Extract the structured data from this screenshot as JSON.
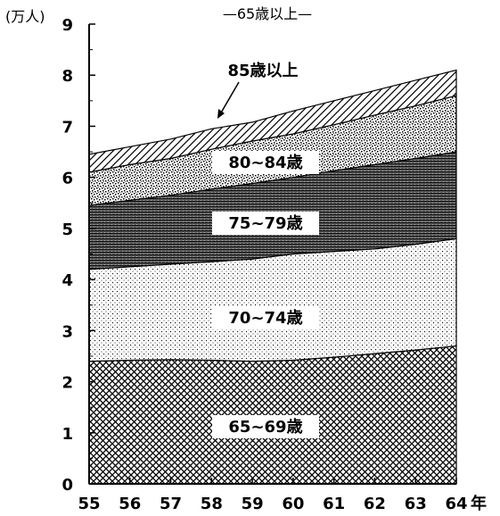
{
  "chart_data": {
    "type": "area",
    "stacked": true,
    "title": "—65歳以上—",
    "ylabel": "(万人)",
    "xunit": "年",
    "x": [
      "55",
      "56",
      "57",
      "58",
      "59",
      "60",
      "61",
      "62",
      "63",
      "64"
    ],
    "ylim": [
      0,
      9
    ],
    "yticks": [
      0,
      1,
      2,
      3,
      4,
      5,
      6,
      7,
      8,
      9
    ],
    "series": [
      {
        "name": "65~69歳",
        "pattern": "crosshatch",
        "values": [
          2.4,
          2.42,
          2.43,
          2.42,
          2.4,
          2.42,
          2.48,
          2.55,
          2.62,
          2.7
        ]
      },
      {
        "name": "70~74歳",
        "pattern": "fine-dots",
        "values": [
          1.8,
          1.83,
          1.87,
          1.93,
          2.0,
          2.08,
          2.07,
          2.05,
          2.07,
          2.1
        ]
      },
      {
        "name": "75~79歳",
        "pattern": "dense-lines",
        "values": [
          1.25,
          1.3,
          1.35,
          1.42,
          1.48,
          1.5,
          1.58,
          1.65,
          1.68,
          1.7
        ]
      },
      {
        "name": "80~84歳",
        "pattern": "stipple",
        "values": [
          0.65,
          0.7,
          0.72,
          0.78,
          0.83,
          0.85,
          0.9,
          0.97,
          1.03,
          1.1
        ]
      },
      {
        "name": "85歳以上",
        "pattern": "diagonal",
        "values": [
          0.35,
          0.35,
          0.38,
          0.4,
          0.37,
          0.45,
          0.47,
          0.48,
          0.5,
          0.5
        ]
      }
    ]
  }
}
